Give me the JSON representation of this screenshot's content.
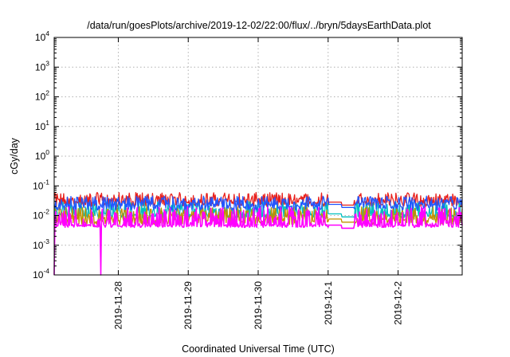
{
  "chart_data": {
    "type": "line",
    "title": "/data/run/goesPlots/archive/2019-12-02/22:00/flux/../bryn/5daysEarthData.plot",
    "xlabel": "Coordinated Universal Time (UTC)",
    "ylabel": "cGy/day",
    "y_scale": "log",
    "ylim": [
      0.0001,
      10000
    ],
    "y_ticks": [
      {
        "value": 0.0001,
        "base": "10",
        "exp": "-4"
      },
      {
        "value": 0.001,
        "base": "10",
        "exp": "-3"
      },
      {
        "value": 0.01,
        "base": "10",
        "exp": "-2"
      },
      {
        "value": 0.1,
        "base": "10",
        "exp": "-1"
      },
      {
        "value": 1,
        "base": "10",
        "exp": "0"
      },
      {
        "value": 10,
        "base": "10",
        "exp": "1"
      },
      {
        "value": 100,
        "base": "10",
        "exp": "2"
      },
      {
        "value": 1000,
        "base": "10",
        "exp": "3"
      },
      {
        "value": 10000,
        "base": "10",
        "exp": "4"
      }
    ],
    "xlim": [
      "2019-11-27T02:00Z",
      "2019-12-02T22:00Z"
    ],
    "x_ticks": [
      "2019-11-28",
      "2019-11-29",
      "2019-11-30",
      "2019-12-1",
      "2019-12-2"
    ],
    "x_tick_values": [
      "2019-11-28T00:00Z",
      "2019-11-29T00:00Z",
      "2019-11-30T00:00Z",
      "2019-12-01T00:00Z",
      "2019-12-02T00:00Z"
    ],
    "grid": true,
    "data_gap": [
      "2019-12-01T00:00Z",
      "2019-12-01T09:00Z"
    ],
    "spike_dips": [
      {
        "time": "2019-11-27T02:00Z",
        "value": 0.0001
      },
      {
        "time": "2019-11-27T18:00Z",
        "value": 0.0001
      }
    ],
    "series": [
      {
        "color": "#e8201c",
        "typical": 0.03,
        "spread_low": 0.02,
        "spread_high": 0.06
      },
      {
        "color": "#2255ff",
        "typical": 0.025,
        "spread_low": 0.015,
        "spread_high": 0.045
      },
      {
        "color": "#00bfbf",
        "typical": 0.012,
        "spread_low": 0.008,
        "spread_high": 0.03
      },
      {
        "color": "#c09000",
        "typical": 0.008,
        "spread_low": 0.005,
        "spread_high": 0.02
      },
      {
        "color": "#ff00ff",
        "typical": 0.005,
        "spread_low": 0.004,
        "spread_high": 0.02
      }
    ]
  }
}
